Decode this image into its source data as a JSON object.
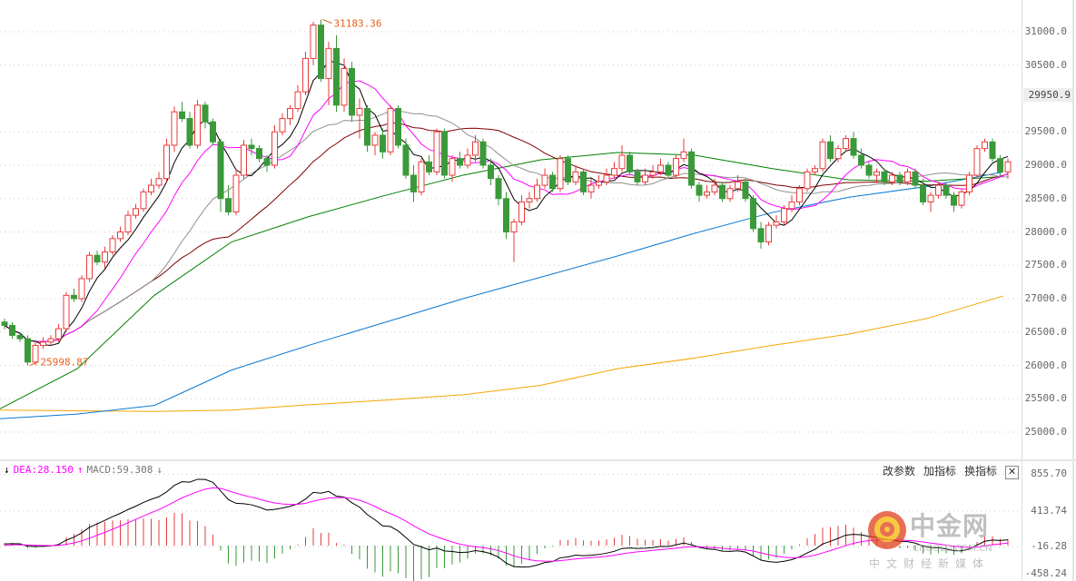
{
  "chart_data": {
    "type": "candlestick",
    "price_axis": {
      "ticks": [
        31000,
        30500,
        29500,
        29000,
        28500,
        28000,
        27500,
        27000,
        26500,
        26000,
        25500,
        25000
      ],
      "range": [
        25000,
        31000
      ],
      "tick_labels": [
        "31000.0",
        "30500.0",
        "29500.0",
        "29000.0",
        "28500.0",
        "28000.0",
        "27500.0",
        "27000.0",
        "26500.0",
        "26000.0",
        "25500.0",
        "25000.0"
      ]
    },
    "current_price_label": "29950.9",
    "current_price": 29950.9,
    "high_annotation": {
      "label": "31183.36",
      "index": 41
    },
    "low_annotation": {
      "label": "25998.87",
      "index": 3
    },
    "grid": true,
    "colors": {
      "up": "#e83b3b",
      "down": "#3a9a3a",
      "ma5": "#000000",
      "ma10": "#ff00ff",
      "ma20": "#909090",
      "ma30": "#800000",
      "ma_green": "#008000",
      "ma_blue": "#0a78d2",
      "ma_orange": "#f5a500",
      "dif": "#000000",
      "dea": "#ff00ff",
      "annotation": "#e8601c"
    },
    "ohlc": [
      [
        26650,
        26700,
        26540,
        26600
      ],
      [
        26600,
        26650,
        26400,
        26450
      ],
      [
        26450,
        26500,
        26350,
        26400
      ],
      [
        26400,
        26450,
        25998.87,
        26050
      ],
      [
        26050,
        26380,
        26000,
        26300
      ],
      [
        26300,
        26420,
        26250,
        26350
      ],
      [
        26350,
        26450,
        26300,
        26400
      ],
      [
        26400,
        26620,
        26350,
        26550
      ],
      [
        26550,
        27100,
        26500,
        27050
      ],
      [
        27050,
        27150,
        26950,
        27000
      ],
      [
        27000,
        27350,
        26950,
        27300
      ],
      [
        27300,
        27700,
        27250,
        27650
      ],
      [
        27650,
        27720,
        27500,
        27550
      ],
      [
        27550,
        27780,
        27450,
        27700
      ],
      [
        27700,
        27950,
        27650,
        27900
      ],
      [
        27900,
        28080,
        27850,
        28000
      ],
      [
        28000,
        28320,
        27950,
        28250
      ],
      [
        28250,
        28420,
        28200,
        28350
      ],
      [
        28350,
        28650,
        28300,
        28600
      ],
      [
        28600,
        28800,
        28550,
        28700
      ],
      [
        28700,
        28900,
        28650,
        28800
      ],
      [
        28800,
        29400,
        28750,
        29300
      ],
      [
        29300,
        29880,
        29200,
        29800
      ],
      [
        29800,
        29950,
        29650,
        29700
      ],
      [
        29700,
        29800,
        29250,
        29300
      ],
      [
        29300,
        29980,
        29250,
        29900
      ],
      [
        29900,
        29950,
        29550,
        29650
      ],
      [
        29650,
        29700,
        29300,
        29350
      ],
      [
        29350,
        29400,
        28300,
        28500
      ],
      [
        28500,
        28700,
        28250,
        28300
      ],
      [
        28300,
        28950,
        28250,
        28850
      ],
      [
        28850,
        29380,
        28800,
        29300
      ],
      [
        29300,
        29400,
        29150,
        29250
      ],
      [
        29250,
        29300,
        29050,
        29100
      ],
      [
        29100,
        29150,
        28900,
        29000
      ],
      [
        29000,
        29600,
        28950,
        29500
      ],
      [
        29500,
        29780,
        29450,
        29700
      ],
      [
        29700,
        29900,
        29600,
        29850
      ],
      [
        29850,
        30200,
        29800,
        30100
      ],
      [
        30100,
        30700,
        30050,
        30600
      ],
      [
        30600,
        31150,
        30500,
        31100
      ],
      [
        31100,
        31183.36,
        30250,
        30300
      ],
      [
        30300,
        30850,
        29900,
        30750
      ],
      [
        30750,
        30950,
        29800,
        29900
      ],
      [
        29900,
        30600,
        29800,
        30450
      ],
      [
        30450,
        30550,
        29650,
        29750
      ],
      [
        29750,
        30000,
        29400,
        29850
      ],
      [
        29850,
        29900,
        29200,
        29300
      ],
      [
        29300,
        29500,
        29150,
        29450
      ],
      [
        29450,
        29550,
        29100,
        29200
      ],
      [
        29200,
        29900,
        29150,
        29850
      ],
      [
        29850,
        29900,
        29250,
        29300
      ],
      [
        29300,
        29400,
        28800,
        28850
      ],
      [
        28850,
        29000,
        28450,
        28600
      ],
      [
        28600,
        29100,
        28550,
        29050
      ],
      [
        29050,
        29150,
        28850,
        28900
      ],
      [
        28900,
        29550,
        28850,
        29500
      ],
      [
        29500,
        29550,
        28800,
        28850
      ],
      [
        28850,
        29150,
        28750,
        29100
      ],
      [
        29100,
        29200,
        28950,
        29000
      ],
      [
        29000,
        29250,
        28950,
        29150
      ],
      [
        29150,
        29450,
        29050,
        29350
      ],
      [
        29350,
        29400,
        28950,
        29000
      ],
      [
        29000,
        29100,
        28700,
        28800
      ],
      [
        28800,
        28850,
        28400,
        28500
      ],
      [
        28500,
        28600,
        27900,
        28000
      ],
      [
        28000,
        28200,
        27550,
        28150
      ],
      [
        28150,
        28550,
        28100,
        28450
      ],
      [
        28450,
        28600,
        28350,
        28500
      ],
      [
        28500,
        28800,
        28450,
        28700
      ],
      [
        28700,
        28950,
        28650,
        28850
      ],
      [
        28850,
        28900,
        28600,
        28650
      ],
      [
        28650,
        29150,
        28600,
        29100
      ],
      [
        29100,
        29150,
        28700,
        28750
      ],
      [
        28750,
        29000,
        28700,
        28900
      ],
      [
        28900,
        28950,
        28550,
        28600
      ],
      [
        28600,
        28800,
        28500,
        28700
      ],
      [
        28700,
        28850,
        28650,
        28750
      ],
      [
        28750,
        28950,
        28700,
        28850
      ],
      [
        28850,
        29050,
        28800,
        28950
      ],
      [
        28950,
        29300,
        28900,
        29150
      ],
      [
        29150,
        29200,
        28850,
        28900
      ],
      [
        28900,
        28950,
        28700,
        28750
      ],
      [
        28750,
        28950,
        28700,
        28850
      ],
      [
        28850,
        29000,
        28800,
        28900
      ],
      [
        28900,
        29100,
        28850,
        29000
      ],
      [
        29000,
        29050,
        28800,
        28850
      ],
      [
        28850,
        29150,
        28800,
        29100
      ],
      [
        29100,
        29400,
        29050,
        29200
      ],
      [
        29200,
        29250,
        28650,
        28700
      ],
      [
        28700,
        28750,
        28450,
        28550
      ],
      [
        28550,
        28700,
        28500,
        28600
      ],
      [
        28600,
        28800,
        28550,
        28700
      ],
      [
        28700,
        28750,
        28450,
        28500
      ],
      [
        28500,
        28700,
        28450,
        28650
      ],
      [
        28650,
        28850,
        28600,
        28750
      ],
      [
        28750,
        28800,
        28450,
        28500
      ],
      [
        28500,
        28550,
        28000,
        28050
      ],
      [
        28050,
        28150,
        27750,
        27850
      ],
      [
        27850,
        28150,
        27800,
        28100
      ],
      [
        28100,
        28250,
        28050,
        28150
      ],
      [
        28150,
        28400,
        28100,
        28350
      ],
      [
        28350,
        28550,
        28300,
        28450
      ],
      [
        28450,
        28700,
        28400,
        28650
      ],
      [
        28650,
        28950,
        28600,
        28900
      ],
      [
        28900,
        29000,
        28850,
        28950
      ],
      [
        28950,
        29400,
        28900,
        29350
      ],
      [
        29350,
        29450,
        29050,
        29100
      ],
      [
        29100,
        29300,
        29050,
        29250
      ],
      [
        29250,
        29450,
        29200,
        29400
      ],
      [
        29400,
        29500,
        29100,
        29150
      ],
      [
        29150,
        29250,
        28950,
        29000
      ],
      [
        29000,
        29050,
        28800,
        28850
      ],
      [
        28850,
        28950,
        28750,
        28900
      ],
      [
        28900,
        28950,
        28700,
        28750
      ],
      [
        28750,
        28900,
        28700,
        28850
      ],
      [
        28850,
        28900,
        28700,
        28750
      ],
      [
        28750,
        28950,
        28700,
        28900
      ],
      [
        28900,
        28950,
        28650,
        28700
      ],
      [
        28700,
        28800,
        28400,
        28450
      ],
      [
        28450,
        28600,
        28300,
        28550
      ],
      [
        28550,
        28750,
        28500,
        28700
      ],
      [
        28700,
        28750,
        28500,
        28550
      ],
      [
        28550,
        28600,
        28300,
        28400
      ],
      [
        28400,
        28650,
        28350,
        28600
      ],
      [
        28600,
        28900,
        28550,
        28850
      ],
      [
        28850,
        29300,
        28800,
        29250
      ],
      [
        29250,
        29400,
        29200,
        29350
      ],
      [
        29350,
        29400,
        29050,
        29100
      ],
      [
        29100,
        29150,
        28850,
        28900
      ],
      [
        28900,
        29100,
        28800,
        29050
      ]
    ],
    "long_ma_samples": {
      "every_n_candles": 10,
      "green": [
        25350,
        25950,
        27050,
        27850,
        28230,
        28550,
        28850,
        29080,
        29190,
        29150,
        28950,
        28780,
        28760,
        28830
      ],
      "blue": [
        25200,
        25270,
        25400,
        25930,
        26300,
        26650,
        27000,
        27320,
        27640,
        27980,
        28290,
        28520,
        28680,
        28900
      ],
      "orange": [
        25330,
        25320,
        25310,
        25330,
        25410,
        25480,
        25560,
        25700,
        25950,
        26110,
        26300,
        26470,
        26700,
        27040
      ]
    },
    "macd_axis": {
      "tick_labels": [
        "855.70",
        "413.74",
        "-16.28",
        "-458.24"
      ],
      "ticks": [
        855.7,
        413.74,
        -16.28,
        -458.24
      ]
    }
  },
  "macd_header": {
    "dif_arrow": "↓",
    "dea": "DEA:28.150",
    "dea_arrow": "↑",
    "macd": "MACD:59.308",
    "macd_arrow": "↓"
  },
  "buttons": {
    "params": "改参数",
    "add": "加指标",
    "switch": "换指标",
    "close": "✕"
  },
  "watermark": {
    "name": "中金网",
    "domain": "CNGOLD.COM.CN",
    "slogan": "中文财经新媒体"
  }
}
